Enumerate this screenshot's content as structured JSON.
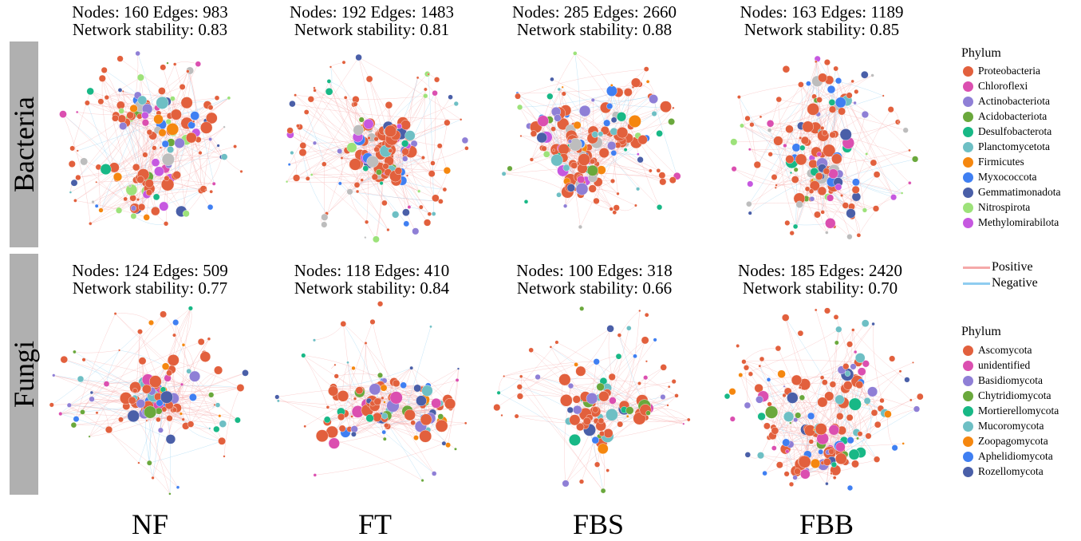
{
  "rows": [
    {
      "label": "Bacteria"
    },
    {
      "label": "Fungi"
    }
  ],
  "columns": [
    "NF",
    "FT",
    "FBS",
    "FBB"
  ],
  "networks": [
    {
      "row": 0,
      "col": 0,
      "line1": "Nodes: 160  Edges: 983",
      "line2": "Network stability:  0.83",
      "nodes": 160,
      "edges": 983,
      "stability": 0.83
    },
    {
      "row": 0,
      "col": 1,
      "line1": "Nodes: 192  Edges: 1483",
      "line2": "Network stability:  0.81",
      "nodes": 192,
      "edges": 1483,
      "stability": 0.81
    },
    {
      "row": 0,
      "col": 2,
      "line1": "Nodes: 285  Edges: 2660",
      "line2": "Network stability:  0.88",
      "nodes": 285,
      "edges": 2660,
      "stability": 0.88
    },
    {
      "row": 0,
      "col": 3,
      "line1": "Nodes: 163  Edges: 1189",
      "line2": "Network stability:  0.85",
      "nodes": 163,
      "edges": 1189,
      "stability": 0.85
    },
    {
      "row": 1,
      "col": 0,
      "line1": "Nodes: 124  Edges: 509",
      "line2": "Network stability:  0.77",
      "nodes": 124,
      "edges": 509,
      "stability": 0.77
    },
    {
      "row": 1,
      "col": 1,
      "line1": "Nodes: 118  Edges: 410",
      "line2": "Network stability:  0.84",
      "nodes": 118,
      "edges": 410,
      "stability": 0.84
    },
    {
      "row": 1,
      "col": 2,
      "line1": "Nodes: 100  Edges: 318",
      "line2": "Network stability:  0.66",
      "nodes": 100,
      "edges": 318,
      "stability": 0.66
    },
    {
      "row": 1,
      "col": 3,
      "line1": "Nodes: 185  Edges: 2420",
      "line2": "Network stability:  0.70",
      "nodes": 185,
      "edges": 2420,
      "stability": 0.7
    }
  ],
  "bacteria_legend": {
    "title": "Phylum",
    "items": [
      {
        "label": "Proteobacteria",
        "color": "#e2603d"
      },
      {
        "label": "Chloroflexi",
        "color": "#db4fb0"
      },
      {
        "label": "Actinobacteriota",
        "color": "#8f7fd6"
      },
      {
        "label": "Acidobacteriota",
        "color": "#6aa83c"
      },
      {
        "label": "Desulfobacterota",
        "color": "#18b886"
      },
      {
        "label": "Planctomycetota",
        "color": "#6ebfc4"
      },
      {
        "label": "Firmicutes",
        "color": "#f5870f"
      },
      {
        "label": "Myxococcota",
        "color": "#3f7ff2"
      },
      {
        "label": "Gemmatimonadota",
        "color": "#4a5fa8"
      },
      {
        "label": "Nitrospirota",
        "color": "#9de27a"
      },
      {
        "label": "Methylomirabilota",
        "color": "#c658e0"
      }
    ]
  },
  "edge_legend": [
    {
      "label": "Positive",
      "color": "#f5a9a9"
    },
    {
      "label": "Negative",
      "color": "#8fcdf0"
    }
  ],
  "fungi_legend": {
    "title": "Phylum",
    "items": [
      {
        "label": "Ascomycota",
        "color": "#e2603d"
      },
      {
        "label": "unidentified",
        "color": "#db4fb0"
      },
      {
        "label": "Basidiomycota",
        "color": "#8f7fd6"
      },
      {
        "label": "Chytridiomycota",
        "color": "#6aa83c"
      },
      {
        "label": "Mortierellomycota",
        "color": "#18b886"
      },
      {
        "label": "Mucoromycota",
        "color": "#6ebfc4"
      },
      {
        "label": "Zoopagomycota",
        "color": "#f5870f"
      },
      {
        "label": "Aphelidiomycota",
        "color": "#3f7ff2"
      },
      {
        "label": "Rozellomycota",
        "color": "#4a5fa8"
      }
    ]
  },
  "colors": {
    "unclassified_node": "#bdbdbd",
    "positive_edge": "#f5a9a9",
    "negative_edge": "#8fcdf0",
    "row_band": "#b0b0b0"
  }
}
